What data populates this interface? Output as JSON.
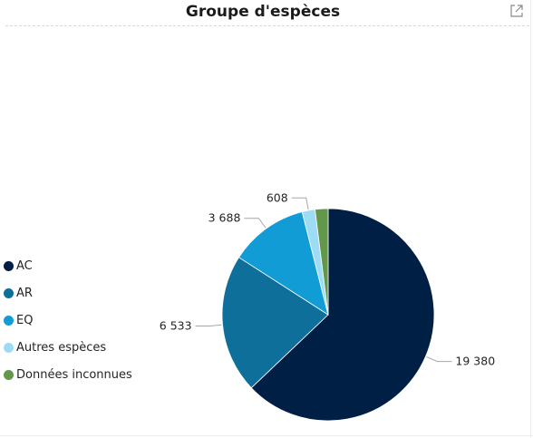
{
  "header": {
    "title": "Groupe d'espèces",
    "expand_icon": "expand-icon"
  },
  "colors": {
    "AC": "#001f44",
    "AR": "#0f6f9b",
    "EQ": "#119cd6",
    "Autres espèces": "#9edcf5",
    "Données inconnues": "#63984a",
    "leader": "#a6a6a6"
  },
  "chart_data": {
    "type": "pie",
    "title": "Groupe d'espèces",
    "categories": [
      "AC",
      "AR",
      "EQ",
      "Autres espèces",
      "Données inconnues"
    ],
    "values": [
      19380,
      6533,
      3688,
      608,
      610
    ],
    "data_labels": [
      "19 380",
      "6 533",
      "3 688",
      "608",
      ""
    ],
    "legend": {
      "position": "left"
    }
  }
}
